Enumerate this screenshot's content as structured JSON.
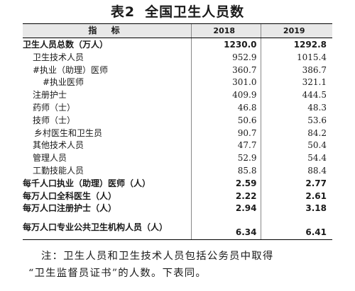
{
  "title": {
    "number": "表2",
    "text": "全国卫生人员数"
  },
  "table": {
    "headers": [
      "指 标",
      "2018",
      "2019"
    ],
    "rows": [
      {
        "label": "卫生人员总数（万人）",
        "v2018": "1230.0",
        "v2019": "1292.8",
        "bold": true,
        "indent": 0
      },
      {
        "label": "卫生技术人员",
        "v2018": "952.9",
        "v2019": "1015.4",
        "bold": false,
        "indent": 1
      },
      {
        "label": "#执业（助理）医师",
        "v2018": "360.7",
        "v2019": "386.7",
        "bold": false,
        "indent": 1
      },
      {
        "label": "#执业医师",
        "v2018": "301.0",
        "v2019": "321.1",
        "bold": false,
        "indent": 3
      },
      {
        "label": "注册护士",
        "v2018": "409.9",
        "v2019": "444.5",
        "bold": false,
        "indent": 1
      },
      {
        "label": "药师（士）",
        "v2018": "46.8",
        "v2019": "48.3",
        "bold": false,
        "indent": 1
      },
      {
        "label": "技师（士）",
        "v2018": "50.6",
        "v2019": "53.6",
        "bold": false,
        "indent": 1
      },
      {
        "label": "乡村医生和卫生员",
        "v2018": "90.7",
        "v2019": "84.2",
        "bold": false,
        "indent": 4
      },
      {
        "label": "其他技术人员",
        "v2018": "47.7",
        "v2019": "50.4",
        "bold": false,
        "indent": 1
      },
      {
        "label": "管理人员",
        "v2018": "52.9",
        "v2019": "54.4",
        "bold": false,
        "indent": 1
      },
      {
        "label": "工勤技能人员",
        "v2018": "85.8",
        "v2019": "88.4",
        "bold": false,
        "indent": 1
      },
      {
        "label": "每千人口执业（助理）医师（人）",
        "v2018": "2.59",
        "v2019": "2.77",
        "bold": true,
        "indent": 0
      },
      {
        "label": "每万人口全科医生（人）",
        "v2018": "2.22",
        "v2019": "2.61",
        "bold": true,
        "indent": 0
      },
      {
        "label": "每万人口注册护士（人）",
        "v2018": "2.94",
        "v2019": "3.18",
        "bold": true,
        "indent": 0
      },
      {
        "label": "每万人口专业公共卫生机构人员（人）",
        "v2018": "6.34",
        "v2019": "6.41",
        "bold": true,
        "indent": 0
      }
    ]
  },
  "note": {
    "line1": "注：卫生人员和卫生技术人员包括公务员中取得",
    "line2": "“卫生监督员证书”的人数。下表同。"
  }
}
